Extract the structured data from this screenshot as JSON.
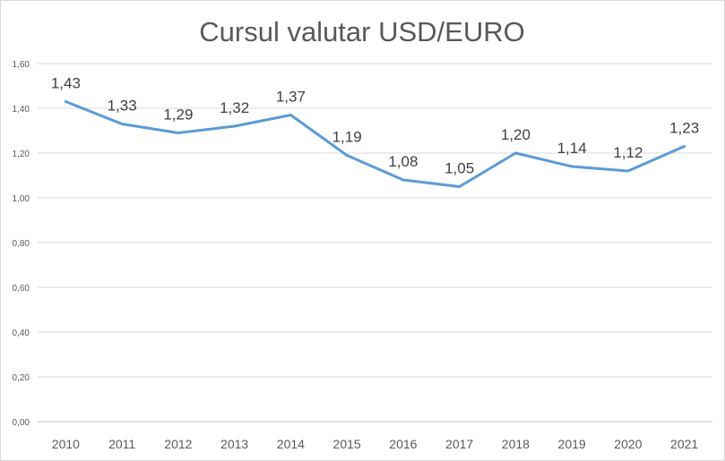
{
  "chart_data": {
    "type": "line",
    "title": "Cursul valutar USD/EURO",
    "xlabel": "",
    "ylabel": "",
    "categories": [
      "2010",
      "2011",
      "2012",
      "2013",
      "2014",
      "2015",
      "2016",
      "2017",
      "2018",
      "2019",
      "2020",
      "2021"
    ],
    "series": [
      {
        "name": "USD/EURO",
        "values": [
          1.43,
          1.33,
          1.29,
          1.32,
          1.37,
          1.19,
          1.08,
          1.05,
          1.2,
          1.14,
          1.12,
          1.23
        ],
        "color": "#5b9bd5"
      }
    ],
    "data_labels": [
      "1,43",
      "1,33",
      "1,29",
      "1,32",
      "1,37",
      "1,19",
      "1,08",
      "1,05",
      "1,20",
      "1,14",
      "1,12",
      "1,23"
    ],
    "ylim": [
      0,
      1.6
    ],
    "yticks": [
      0,
      0.2,
      0.4,
      0.6,
      0.8,
      1.0,
      1.2,
      1.4,
      1.6
    ],
    "ytick_labels": [
      "0,00",
      "0,20",
      "0,40",
      "0,60",
      "0,80",
      "1,00",
      "1,20",
      "1,40",
      "1,60"
    ],
    "grid": true,
    "legend": "none"
  }
}
